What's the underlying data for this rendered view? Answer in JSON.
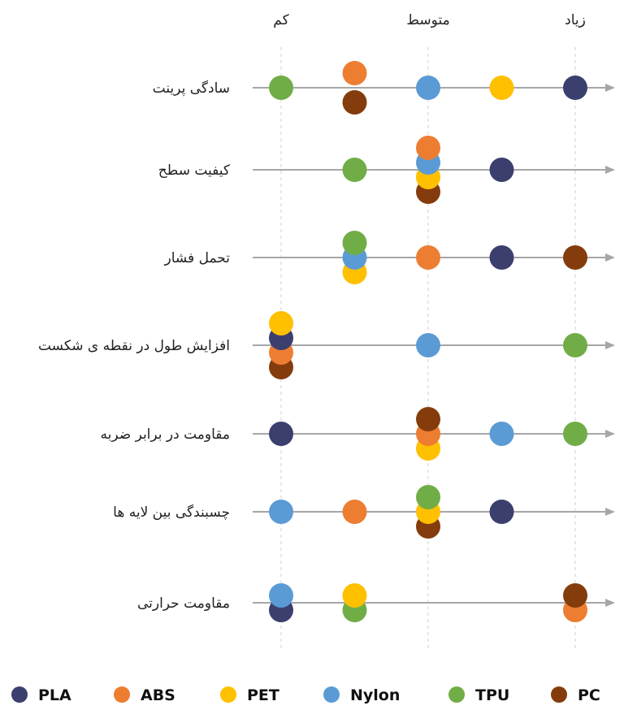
{
  "chart_data": {
    "type": "scatter",
    "x_ticks": [
      "کم",
      "متوسط",
      "زیاد"
    ],
    "x_range": [
      0,
      4
    ],
    "legend_position": "bottom",
    "grid": "vertical dashed at tick positions",
    "series": [
      {
        "name": "PLA",
        "color": "#3b3f6e"
      },
      {
        "name": "ABS",
        "color": "#ed7d31"
      },
      {
        "name": "PET",
        "color": "#ffc000"
      },
      {
        "name": "Nylon",
        "color": "#5b9bd5"
      },
      {
        "name": "TPU",
        "color": "#70ad47"
      },
      {
        "name": "PC",
        "color": "#843c0c"
      }
    ],
    "rows": [
      {
        "label": "سادگی پرینت",
        "points": [
          {
            "series": "TPU",
            "x": 0,
            "stack": 0
          },
          {
            "series": "PC",
            "x": 1,
            "stack": -1
          },
          {
            "series": "ABS",
            "x": 1,
            "stack": 1
          },
          {
            "series": "Nylon",
            "x": 2,
            "stack": 0
          },
          {
            "series": "PET",
            "x": 3,
            "stack": 0
          },
          {
            "series": "PLA",
            "x": 4,
            "stack": 0
          }
        ]
      },
      {
        "label": "کیفیت سطح",
        "points": [
          {
            "series": "TPU",
            "x": 1,
            "stack": 0
          },
          {
            "series": "PC",
            "x": 2,
            "stack": -1.5
          },
          {
            "series": "PET",
            "x": 2,
            "stack": -0.5
          },
          {
            "series": "Nylon",
            "x": 2,
            "stack": 0.5
          },
          {
            "series": "ABS",
            "x": 2,
            "stack": 1.5
          },
          {
            "series": "PLA",
            "x": 3,
            "stack": 0
          }
        ]
      },
      {
        "label": "تحمل فشار",
        "points": [
          {
            "series": "PET",
            "x": 1,
            "stack": -1
          },
          {
            "series": "Nylon",
            "x": 1,
            "stack": 0
          },
          {
            "series": "TPU",
            "x": 1,
            "stack": 1
          },
          {
            "series": "ABS",
            "x": 2,
            "stack": 0
          },
          {
            "series": "PLA",
            "x": 3,
            "stack": 0
          },
          {
            "series": "PC",
            "x": 4,
            "stack": 0
          }
        ]
      },
      {
        "label": "افزایش طول در نقطه ی شکست",
        "points": [
          {
            "series": "PC",
            "x": 0,
            "stack": -1.5
          },
          {
            "series": "ABS",
            "x": 0,
            "stack": -0.5
          },
          {
            "series": "PLA",
            "x": 0,
            "stack": 0.5
          },
          {
            "series": "PET",
            "x": 0,
            "stack": 1.5
          },
          {
            "series": "Nylon",
            "x": 2,
            "stack": 0
          },
          {
            "series": "TPU",
            "x": 4,
            "stack": 0
          }
        ]
      },
      {
        "label": "مقاومت در برابر ضربه",
        "points": [
          {
            "series": "PLA",
            "x": 0,
            "stack": 0
          },
          {
            "series": "PET",
            "x": 2,
            "stack": -1
          },
          {
            "series": "ABS",
            "x": 2,
            "stack": 0
          },
          {
            "series": "PC",
            "x": 2,
            "stack": 1
          },
          {
            "series": "Nylon",
            "x": 3,
            "stack": 0
          },
          {
            "series": "TPU",
            "x": 4,
            "stack": 0
          }
        ]
      },
      {
        "label": "چسبندگی بین لایه ها",
        "points": [
          {
            "series": "Nylon",
            "x": 0,
            "stack": 0
          },
          {
            "series": "ABS",
            "x": 1,
            "stack": 0
          },
          {
            "series": "PC",
            "x": 2,
            "stack": -1
          },
          {
            "series": "PET",
            "x": 2,
            "stack": 0
          },
          {
            "series": "TPU",
            "x": 2,
            "stack": 1
          },
          {
            "series": "PLA",
            "x": 3,
            "stack": 0
          }
        ]
      },
      {
        "label": "مقاومت حرارتی",
        "points": [
          {
            "series": "PLA",
            "x": 0,
            "stack": -0.5
          },
          {
            "series": "Nylon",
            "x": 0,
            "stack": 0.5
          },
          {
            "series": "TPU",
            "x": 1,
            "stack": -0.5
          },
          {
            "series": "PET",
            "x": 1,
            "stack": 0.5
          },
          {
            "series": "ABS",
            "x": 4,
            "stack": -0.5
          },
          {
            "series": "PC",
            "x": 4,
            "stack": 0.5
          }
        ]
      }
    ]
  }
}
